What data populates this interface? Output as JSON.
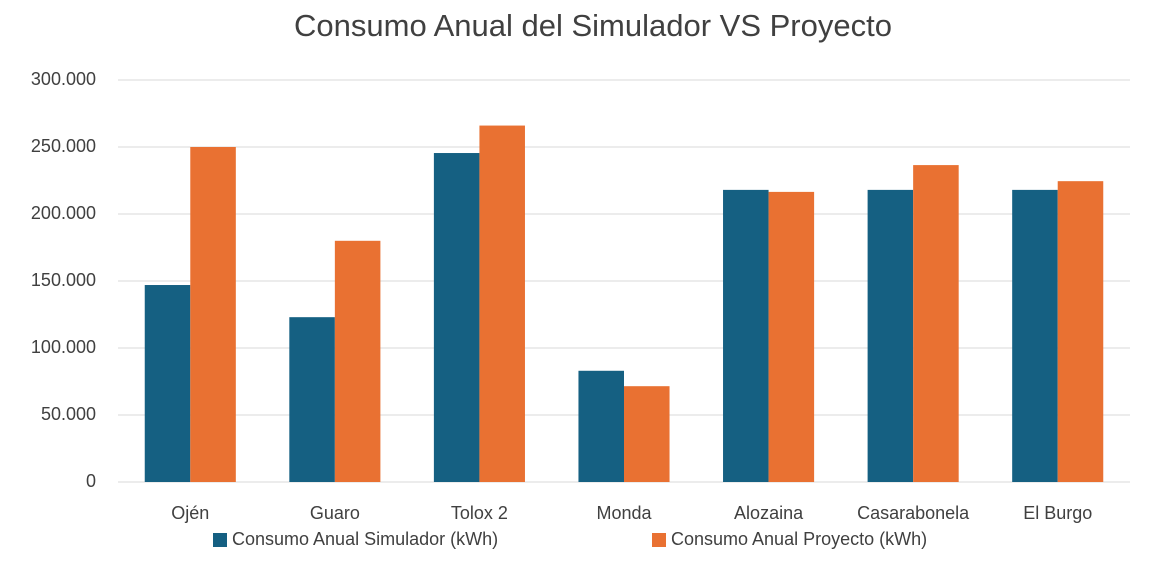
{
  "chart_data": {
    "type": "bar",
    "title": "Consumo Anual del Simulador VS Proyecto",
    "categories": [
      "Ojén",
      "Guaro",
      "Tolox 2",
      "Monda",
      "Alozaina",
      "Casarabonela",
      "El Burgo"
    ],
    "series": [
      {
        "name": "Consumo Anual Simulador (kWh)",
        "color": "#156082",
        "values": [
          147000,
          123000,
          245500,
          83000,
          218000,
          218000,
          218000
        ]
      },
      {
        "name": "Consumo Anual Proyecto (kWh)",
        "color": "#e97132",
        "values": [
          250000,
          180000,
          266000,
          71500,
          216500,
          236500,
          224500
        ]
      }
    ],
    "ylim": [
      0,
      300000
    ],
    "yticks": [
      0,
      {
        "value": 50000,
        "label": "50.000"
      },
      {
        "value": 100000,
        "label": "100.000"
      },
      {
        "value": 150000,
        "label": "150.000"
      },
      {
        "value": 200000,
        "label": "200.000"
      },
      {
        "value": 250000,
        "label": "250.000"
      },
      {
        "value": 300000,
        "label": "300.000"
      }
    ],
    "grid": true,
    "legend": "bottom"
  }
}
